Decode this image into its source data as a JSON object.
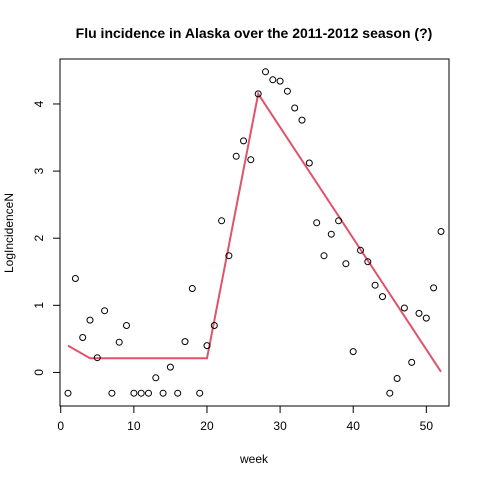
{
  "chart_data": {
    "type": "scatter",
    "title": "Flu incidence in Alaska over the 2011-2012 season (?)",
    "xlabel": "week",
    "ylabel": "LogIncidenceN",
    "xlim": [
      -0.1,
      53.1
    ],
    "ylim": [
      -0.5,
      4.67
    ],
    "xticks": [
      0,
      10,
      20,
      30,
      40,
      50
    ],
    "yticks": [
      0,
      1,
      2,
      3,
      4
    ],
    "grid": false,
    "point_color": "#000000",
    "line_color": "#DF536B",
    "points": [
      [
        1,
        -0.31
      ],
      [
        2,
        1.4
      ],
      [
        3,
        0.52
      ],
      [
        4,
        0.78
      ],
      [
        5,
        0.22
      ],
      [
        6,
        0.92
      ],
      [
        7,
        -0.31
      ],
      [
        8,
        0.45
      ],
      [
        9,
        0.7
      ],
      [
        10,
        -0.31
      ],
      [
        11,
        -0.31
      ],
      [
        12,
        -0.31
      ],
      [
        13,
        -0.08
      ],
      [
        14,
        -0.31
      ],
      [
        15,
        0.08
      ],
      [
        16,
        -0.31
      ],
      [
        17,
        0.46
      ],
      [
        18,
        1.25
      ],
      [
        19,
        -0.31
      ],
      [
        20,
        0.4
      ],
      [
        21,
        0.7
      ],
      [
        22,
        2.26
      ],
      [
        23,
        1.74
      ],
      [
        24,
        3.22
      ],
      [
        25,
        3.45
      ],
      [
        26,
        3.17
      ],
      [
        27,
        4.15
      ],
      [
        28,
        4.48
      ],
      [
        29,
        4.36
      ],
      [
        30,
        4.34
      ],
      [
        31,
        4.19
      ],
      [
        32,
        3.94
      ],
      [
        33,
        3.76
      ],
      [
        34,
        3.12
      ],
      [
        35,
        2.23
      ],
      [
        36,
        1.74
      ],
      [
        37,
        2.06
      ],
      [
        38,
        2.26
      ],
      [
        39,
        1.62
      ],
      [
        40,
        0.31
      ],
      [
        41,
        1.82
      ],
      [
        42,
        1.65
      ],
      [
        43,
        1.3
      ],
      [
        44,
        1.13
      ],
      [
        45,
        -0.31
      ],
      [
        46,
        -0.09
      ],
      [
        47,
        0.96
      ],
      [
        48,
        0.15
      ],
      [
        49,
        0.88
      ],
      [
        50,
        0.81
      ],
      [
        51,
        1.26
      ],
      [
        52,
        2.1
      ]
    ],
    "fit_line": [
      [
        1,
        0.4
      ],
      [
        4,
        0.21
      ],
      [
        20,
        0.21
      ],
      [
        27,
        4.15
      ],
      [
        52,
        0.01
      ]
    ]
  }
}
